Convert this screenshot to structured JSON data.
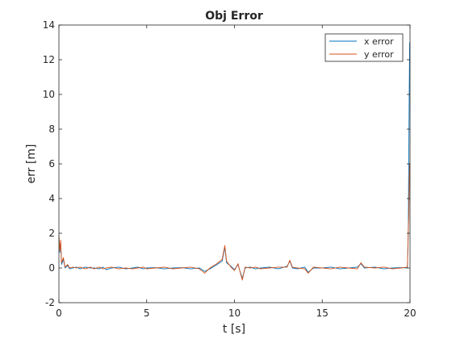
{
  "chart_data": {
    "type": "line",
    "title": "Obj Error",
    "xlabel": "t [s]",
    "ylabel": "err [m]",
    "xlim": [
      0,
      20
    ],
    "ylim": [
      -2,
      14
    ],
    "x_ticks": [
      0,
      5,
      10,
      15,
      20
    ],
    "y_ticks": [
      -2,
      0,
      2,
      4,
      6,
      8,
      10,
      12,
      14
    ],
    "grid": false,
    "legend_position": "top-right",
    "series": [
      {
        "name": "x error",
        "color": "#0072bd",
        "points": [
          [
            0,
            1.8
          ],
          [
            0.05,
            0.9
          ],
          [
            0.1,
            1.5
          ],
          [
            0.15,
            0.2
          ],
          [
            0.25,
            0.5
          ],
          [
            0.35,
            0.0
          ],
          [
            0.5,
            0.15
          ],
          [
            0.6,
            -0.05
          ],
          [
            0.8,
            0.0
          ],
          [
            1.0,
            0.05
          ],
          [
            1.2,
            -0.05
          ],
          [
            1.5,
            0.05
          ],
          [
            1.8,
            0.0
          ],
          [
            2.0,
            0.0
          ],
          [
            2.3,
            -0.05
          ],
          [
            2.5,
            0.05
          ],
          [
            2.7,
            -0.1
          ],
          [
            3.0,
            0.0
          ],
          [
            3.4,
            0.05
          ],
          [
            3.8,
            -0.05
          ],
          [
            4.2,
            0.0
          ],
          [
            4.5,
            0.05
          ],
          [
            4.8,
            -0.05
          ],
          [
            5.0,
            0.0
          ],
          [
            5.5,
            0.02
          ],
          [
            6.0,
            -0.05
          ],
          [
            6.5,
            0.0
          ],
          [
            7.0,
            0.02
          ],
          [
            7.5,
            -0.05
          ],
          [
            8.0,
            0.0
          ],
          [
            8.3,
            -0.2
          ],
          [
            8.6,
            -0.05
          ],
          [
            9.0,
            0.2
          ],
          [
            9.3,
            0.4
          ],
          [
            9.45,
            1.2
          ],
          [
            9.55,
            0.3
          ],
          [
            9.8,
            0.1
          ],
          [
            10.0,
            -0.1
          ],
          [
            10.2,
            0.2
          ],
          [
            10.35,
            -0.3
          ],
          [
            10.45,
            -0.6
          ],
          [
            10.6,
            0.0
          ],
          [
            10.9,
            0.05
          ],
          [
            11.2,
            -0.05
          ],
          [
            11.5,
            0.0
          ],
          [
            12.0,
            0.05
          ],
          [
            12.5,
            -0.05
          ],
          [
            13.0,
            0.1
          ],
          [
            13.15,
            0.4
          ],
          [
            13.3,
            0.0
          ],
          [
            13.6,
            -0.05
          ],
          [
            14.0,
            0.05
          ],
          [
            14.2,
            -0.25
          ],
          [
            14.5,
            0.0
          ],
          [
            15.0,
            0.0
          ],
          [
            15.5,
            0.05
          ],
          [
            16.0,
            -0.05
          ],
          [
            16.5,
            0.0
          ],
          [
            17.0,
            0.05
          ],
          [
            17.2,
            0.25
          ],
          [
            17.4,
            0.0
          ],
          [
            18.0,
            0.05
          ],
          [
            18.5,
            -0.05
          ],
          [
            19.0,
            0.0
          ],
          [
            19.5,
            0.02
          ],
          [
            19.85,
            0.0
          ],
          [
            19.9,
            2.0
          ],
          [
            19.93,
            6.5
          ],
          [
            19.96,
            10.8
          ],
          [
            19.98,
            13.0
          ]
        ]
      },
      {
        "name": "y error",
        "color": "#d95319",
        "points": [
          [
            0,
            1.9
          ],
          [
            0.05,
            1.0
          ],
          [
            0.1,
            1.6
          ],
          [
            0.15,
            0.3
          ],
          [
            0.25,
            0.6
          ],
          [
            0.35,
            0.05
          ],
          [
            0.5,
            0.2
          ],
          [
            0.6,
            0.0
          ],
          [
            0.8,
            0.05
          ],
          [
            1.0,
            0.0
          ],
          [
            1.2,
            0.05
          ],
          [
            1.5,
            -0.05
          ],
          [
            1.8,
            0.05
          ],
          [
            2.0,
            -0.05
          ],
          [
            2.3,
            0.05
          ],
          [
            2.5,
            -0.05
          ],
          [
            2.7,
            0.0
          ],
          [
            3.0,
            0.05
          ],
          [
            3.4,
            -0.05
          ],
          [
            3.8,
            0.0
          ],
          [
            4.2,
            -0.05
          ],
          [
            4.5,
            0.0
          ],
          [
            4.8,
            0.05
          ],
          [
            5.0,
            -0.05
          ],
          [
            5.5,
            0.0
          ],
          [
            6.0,
            0.05
          ],
          [
            6.5,
            -0.05
          ],
          [
            7.0,
            0.0
          ],
          [
            7.5,
            0.05
          ],
          [
            8.0,
            -0.05
          ],
          [
            8.3,
            -0.3
          ],
          [
            8.6,
            0.0
          ],
          [
            9.0,
            0.25
          ],
          [
            9.3,
            0.5
          ],
          [
            9.45,
            1.3
          ],
          [
            9.55,
            0.4
          ],
          [
            9.8,
            0.05
          ],
          [
            10.0,
            -0.15
          ],
          [
            10.2,
            0.25
          ],
          [
            10.35,
            -0.35
          ],
          [
            10.45,
            -0.7
          ],
          [
            10.6,
            0.05
          ],
          [
            10.9,
            0.0
          ],
          [
            11.2,
            0.05
          ],
          [
            11.5,
            -0.05
          ],
          [
            12.0,
            0.0
          ],
          [
            12.5,
            0.05
          ],
          [
            13.0,
            0.05
          ],
          [
            13.15,
            0.45
          ],
          [
            13.3,
            0.05
          ],
          [
            13.6,
            0.0
          ],
          [
            14.0,
            -0.05
          ],
          [
            14.2,
            -0.3
          ],
          [
            14.5,
            0.05
          ],
          [
            15.0,
            0.0
          ],
          [
            15.5,
            -0.05
          ],
          [
            16.0,
            0.05
          ],
          [
            16.5,
            0.0
          ],
          [
            17.0,
            -0.05
          ],
          [
            17.2,
            0.3
          ],
          [
            17.4,
            0.05
          ],
          [
            18.0,
            0.0
          ],
          [
            18.5,
            0.05
          ],
          [
            19.0,
            -0.05
          ],
          [
            19.5,
            0.0
          ],
          [
            19.85,
            0.05
          ],
          [
            19.9,
            2.1
          ],
          [
            19.93,
            3.0
          ],
          [
            19.96,
            5.2
          ],
          [
            19.98,
            6.0
          ]
        ]
      }
    ]
  }
}
